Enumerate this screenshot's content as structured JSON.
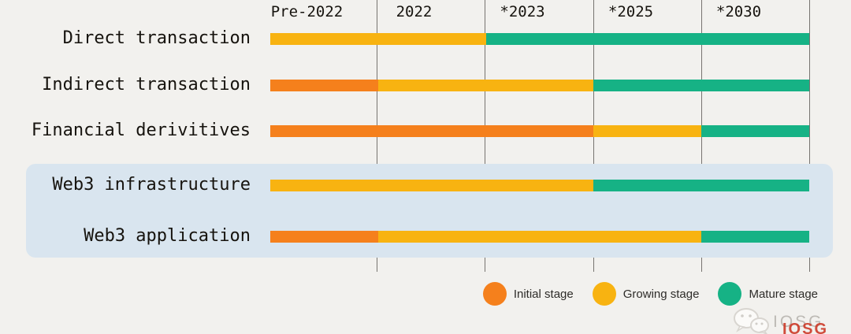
{
  "colors": {
    "bg": "#f2f1ee",
    "panel": "#d9e5ef",
    "grid": "#4e4a45",
    "text": "#16130e",
    "legend-text": "#2e2c29",
    "wm-gray": "#bdbab5",
    "wm-red": "#cd3a28"
  },
  "legend": [
    {
      "label": "Initial stage",
      "color": "#f5801c"
    },
    {
      "label": "Growing stage",
      "color": "#f8b311"
    },
    {
      "label": "Mature stage",
      "color": "#16b285"
    }
  ],
  "watermark": {
    "icon": "wechat-icon",
    "brand": "IOSG",
    "red_stamp": "IOSG"
  },
  "chart_data": {
    "type": "bar",
    "subtype": "horizontal stage timeline (gantt-like stacked bars)",
    "x_periods": [
      "Pre-2022",
      "2022",
      "*2023",
      "*2025",
      "*2030"
    ],
    "categories": [
      "Direct transaction",
      "Indirect transaction",
      "Financial derivitives",
      "Web3 infrastructure",
      "Web3 application"
    ],
    "stage_by_period": [
      [
        "Growing",
        "Growing",
        "Mature",
        "Mature",
        "Mature"
      ],
      [
        "Initial",
        "Growing",
        "Growing",
        "Mature",
        "Mature"
      ],
      [
        "Initial",
        "Initial",
        "Initial",
        "Growing",
        "Mature"
      ],
      [
        "Growing",
        "Growing",
        "Growing",
        "Mature",
        "Mature"
      ],
      [
        "Initial",
        "Growing",
        "Growing",
        "Growing",
        "Mature"
      ]
    ],
    "stage_colors": {
      "Initial": "#f5801c",
      "Growing": "#f8b311",
      "Mature": "#16b285"
    },
    "highlighted_categories": [
      "Web3 infrastructure",
      "Web3 application"
    ],
    "legend_entries": [
      "Initial stage",
      "Growing stage",
      "Mature stage"
    ],
    "legend_position": "bottom-right",
    "grid": "vertical lines at period boundaries"
  }
}
